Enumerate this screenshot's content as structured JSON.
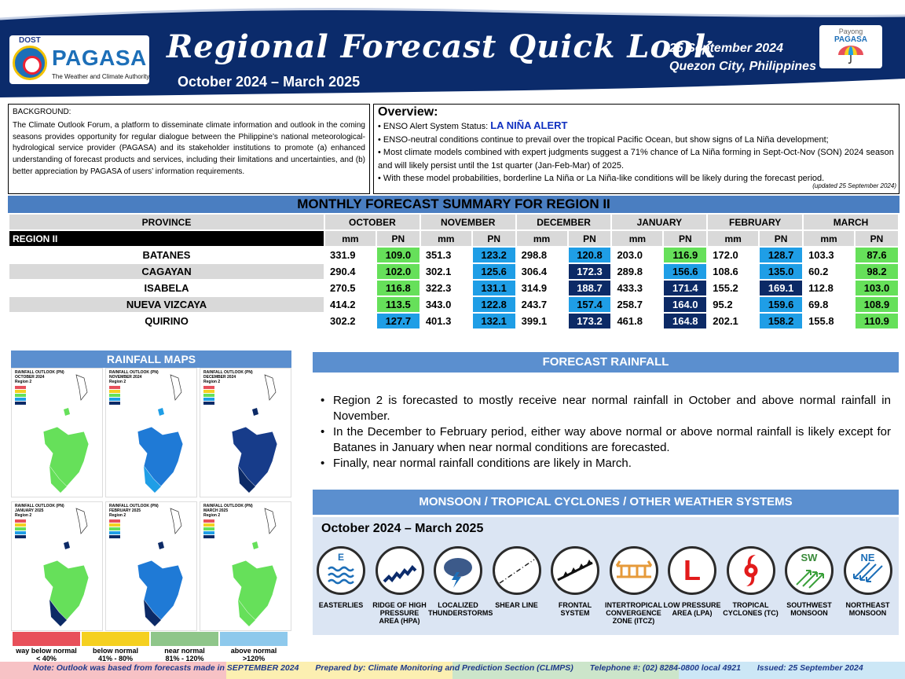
{
  "header": {
    "org_top": "DOST",
    "org_name": "PAGASA",
    "org_sub": "The Weather and Climate Authority",
    "title": "Regional Forecast Quick Look",
    "period": "October 2024 – March 2025",
    "date": "25 September 2024",
    "place": "Quezon City, Philippines",
    "payong_1": "Payong",
    "payong_2": "PAGASA"
  },
  "background": {
    "heading": "BACKGROUND:",
    "text": "The Climate Outlook Forum, a platform to disseminate climate information and outlook in the coming seasons provides opportunity for regular dialogue between the Philippine’s national meteorological-hydrological service provider (PAGASA) and its stakeholder institutions to promote (a) enhanced understanding of forecast products and services, including their limitations and uncertainties, and (b) better appreciation by PAGASA of users’ information requirements."
  },
  "overview": {
    "heading": "Overview:",
    "enso_label": "• ENSO Alert System Status: ",
    "enso_status": "LA NIÑA ALERT",
    "bullets": [
      "• ENSO-neutral conditions continue to prevail over the tropical Pacific Ocean, but show signs of La Niña development;",
      "• Most climate models combined with expert judgments suggest a 71% chance of La Niña forming in Sept-Oct-Nov (SON) 2024 season and will likely persist until the 1st quarter (Jan-Feb-Mar) of 2025.",
      "• With these model probabilities, borderline La Niña or La Niña-like conditions will be likely during the forecast period."
    ],
    "updated": "(updated 25 September 2024)"
  },
  "table": {
    "title": "MONTHLY FORECAST SUMMARY FOR REGION II",
    "province_header": "PROVINCE",
    "region_label": "REGION II",
    "months": [
      "OCTOBER",
      "NOVEMBER",
      "DECEMBER",
      "JANUARY",
      "FEBRUARY",
      "MARCH"
    ],
    "mm_label": "mm",
    "pn_label": "PN",
    "rows": [
      {
        "province": "BATANES",
        "cells": [
          [
            "331.9",
            "109.0"
          ],
          [
            "351.3",
            "123.2"
          ],
          [
            "298.8",
            "120.8"
          ],
          [
            "203.0",
            "116.9"
          ],
          [
            "172.0",
            "128.7"
          ],
          [
            "103.3",
            "87.6"
          ]
        ]
      },
      {
        "province": "CAGAYAN",
        "cells": [
          [
            "290.4",
            "102.0"
          ],
          [
            "302.1",
            "125.6"
          ],
          [
            "306.4",
            "172.3"
          ],
          [
            "289.8",
            "156.6"
          ],
          [
            "108.6",
            "135.0"
          ],
          [
            "60.2",
            "98.2"
          ]
        ]
      },
      {
        "province": "ISABELA",
        "cells": [
          [
            "270.5",
            "116.8"
          ],
          [
            "322.3",
            "131.1"
          ],
          [
            "314.9",
            "188.7"
          ],
          [
            "433.3",
            "171.4"
          ],
          [
            "155.2",
            "169.1"
          ],
          [
            "112.8",
            "103.0"
          ]
        ]
      },
      {
        "province": "NUEVA VIZCAYA",
        "cells": [
          [
            "414.2",
            "113.5"
          ],
          [
            "343.0",
            "122.8"
          ],
          [
            "243.7",
            "157.4"
          ],
          [
            "258.7",
            "164.0"
          ],
          [
            "95.2",
            "159.6"
          ],
          [
            "69.8",
            "108.9"
          ]
        ]
      },
      {
        "province": "QUIRINO",
        "cells": [
          [
            "302.2",
            "127.7"
          ],
          [
            "401.3",
            "132.1"
          ],
          [
            "399.1",
            "173.2"
          ],
          [
            "461.8",
            "164.8"
          ],
          [
            "202.1",
            "158.2"
          ],
          [
            "155.8",
            "110.9"
          ]
        ]
      }
    ],
    "pn_colors": {
      "near_normal": "#66e05a",
      "above_normal": "#1f9ee6",
      "way_above": "#0c2a66"
    }
  },
  "rainfall_maps": {
    "title": "RAINFALL MAPS",
    "maps": [
      {
        "title": "RAINFALL OUTLOOK (PN)",
        "month": "OCTOBER 2024",
        "region": "Region 2"
      },
      {
        "title": "RAINFALL OUTLOOK (PN)",
        "month": "NOVEMBER 2024",
        "region": "Region 2"
      },
      {
        "title": "RAINFALL OUTLOOK (PN)",
        "month": "DECEMBER 2024",
        "region": "Region 2"
      },
      {
        "title": "RAINFALL OUTLOOK (PN)",
        "month": "JANUARY 2025",
        "region": "Region 2"
      },
      {
        "title": "RAINFALL OUTLOOK (PN)",
        "month": "FEBRUARY 2025",
        "region": "Region 2"
      },
      {
        "title": "RAINFALL OUTLOOK (PN)",
        "month": "MARCH 2025",
        "region": "Region 2"
      }
    ],
    "scale": [
      {
        "label1": "way below normal",
        "label2": "< 40%",
        "color": "#e8505a"
      },
      {
        "label1": "below normal",
        "label2": "41% - 80%",
        "color": "#f5d020"
      },
      {
        "label1": "near normal",
        "label2": "81% - 120%",
        "color": "#8fc68a"
      },
      {
        "label1": "above normal",
        "label2": ">120%",
        "color": "#8ec9ec"
      }
    ]
  },
  "forecast_rainfall": {
    "title": "FORECAST RAINFALL",
    "bullets": [
      "Region 2 is forecasted to mostly receive near normal rainfall in October and above normal rainfall in November.",
      "In the December to February period, either way above normal or above normal rainfall is likely except for Batanes in January when near normal conditions are forecasted.",
      "Finally, near normal rainfall conditions are likely in March."
    ]
  },
  "systems": {
    "title": "MONSOON / TROPICAL CYCLONES / OTHER WEATHER SYSTEMS",
    "period": "October 2024 – March 2025",
    "items": [
      {
        "label": "EASTERLIES",
        "icon": "easterlies-icon"
      },
      {
        "label": "RIDGE OF HIGH PRESSURE AREA (HPA)",
        "icon": "ridge-icon"
      },
      {
        "label": "LOCALIZED THUNDERSTORMS",
        "icon": "thunderstorm-icon"
      },
      {
        "label": "SHEAR LINE",
        "icon": "shear-line-icon"
      },
      {
        "label": "FRONTAL SYSTEM",
        "icon": "frontal-system-icon"
      },
      {
        "label": "INTERTROPICAL CONVERGENCE ZONE (ITCZ)",
        "icon": "itcz-icon"
      },
      {
        "label": "LOW PRESSURE AREA (LPA)",
        "icon": "lpa-icon"
      },
      {
        "label": "TROPICAL CYCLONES (TC)",
        "icon": "tropical-cyclone-icon"
      },
      {
        "label": "SOUTHWEST MONSOON",
        "icon": "southwest-monsoon-icon"
      },
      {
        "label": "NORTHEAST MONSOON",
        "icon": "northeast-monsoon-icon"
      }
    ],
    "icon_text": {
      "easterlies": "E",
      "sw": "SW",
      "ne": "NE",
      "lpa": "L"
    }
  },
  "footer": {
    "note": "Note: Outlook was based from forecasts made in SEPTEMBER 2024",
    "prepared": "Prepared by: Climate Monitoring and Prediction Section (CLIMPS)",
    "telephone": "Telephone #: (02) 8284-0800 local 4921",
    "issued": "Issued: 25 September 2024"
  }
}
